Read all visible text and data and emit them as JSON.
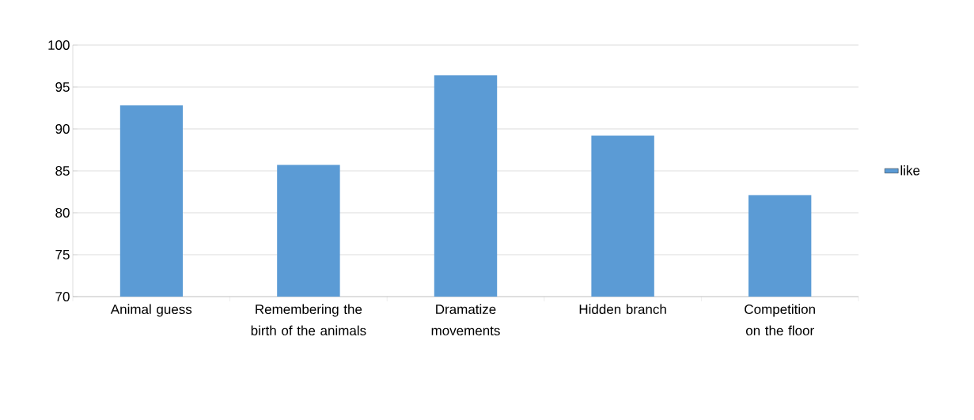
{
  "chart_data": {
    "type": "bar",
    "categories": [
      "Animal guess",
      "Remembering the birth of the animals",
      "Dramatize movements",
      "Hidden branch",
      "Competition on the floor"
    ],
    "series": [
      {
        "name": "like",
        "color": "#5b9bd5",
        "values": [
          92.8,
          85.7,
          96.4,
          89.2,
          82.1
        ]
      }
    ],
    "ylim": [
      70,
      100
    ],
    "yticks": [
      70,
      75,
      80,
      85,
      90,
      95,
      100
    ],
    "grid": "y",
    "legend": "right"
  }
}
